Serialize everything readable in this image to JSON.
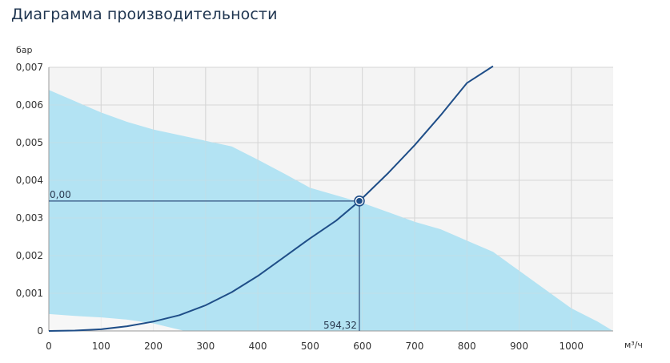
{
  "chart_data": {
    "type": "area",
    "title": "Диаграмма производительности",
    "ylabel": "бар",
    "xlabel": "м³/ч",
    "xlim": [
      0,
      1080
    ],
    "ylim": [
      0,
      0.007
    ],
    "x_ticks": [
      0,
      100,
      200,
      300,
      400,
      500,
      600,
      700,
      800,
      900,
      1000
    ],
    "x_tick_labels": [
      "0",
      "100",
      "200",
      "300",
      "400",
      "500",
      "600",
      "700",
      "800",
      "900",
      "1000"
    ],
    "y_ticks": [
      0,
      0.001,
      0.002,
      0.003,
      0.004,
      0.005,
      0.006,
      0.007
    ],
    "y_tick_labels": [
      "0",
      "0,001",
      "0,002",
      "0,003",
      "0,004",
      "0,005",
      "0,006",
      "0,007"
    ],
    "grid": true,
    "operating_area": {
      "upper": {
        "x": [
          0,
          50,
          100,
          150,
          200,
          250,
          300,
          350,
          400,
          450,
          500,
          550,
          600,
          650,
          700,
          750,
          800,
          850,
          900,
          950,
          1000,
          1050,
          1080
        ],
        "y": [
          0.0064,
          0.0061,
          0.0058,
          0.00555,
          0.00535,
          0.0052,
          0.00505,
          0.0049,
          0.00455,
          0.00418,
          0.0038,
          0.0036,
          0.0034,
          0.00315,
          0.0029,
          0.0027,
          0.0024,
          0.0021,
          0.0016,
          0.0011,
          0.0006,
          0.00025,
          0.0
        ]
      },
      "lower": {
        "x": [
          0,
          50,
          100,
          150,
          200,
          260
        ],
        "y": [
          0.00045,
          0.0004,
          0.00036,
          0.0003,
          0.0002,
          0.0
        ]
      }
    },
    "system_curve": {
      "x": [
        0,
        50,
        100,
        150,
        200,
        250,
        300,
        350,
        400,
        450,
        500,
        550,
        594.32,
        650,
        700,
        750,
        800,
        850
      ],
      "y": [
        0,
        1.05e-05,
        4.5e-05,
        0.000125,
        0.00025,
        0.00042,
        0.00068,
        0.00103,
        0.00146,
        0.00196,
        0.00246,
        0.00293,
        0.00345,
        0.0042,
        0.00493,
        0.00573,
        0.00658,
        0.00703
      ]
    },
    "operating_point": {
      "x": 594.32,
      "y": 0.00345,
      "x_label": "594,32",
      "y_label": "0,00"
    },
    "colors": {
      "area": "#b3e3f3",
      "curve": "#1f4e88",
      "guide": "#2f4f7f",
      "grid": "#d6d6d6"
    }
  }
}
